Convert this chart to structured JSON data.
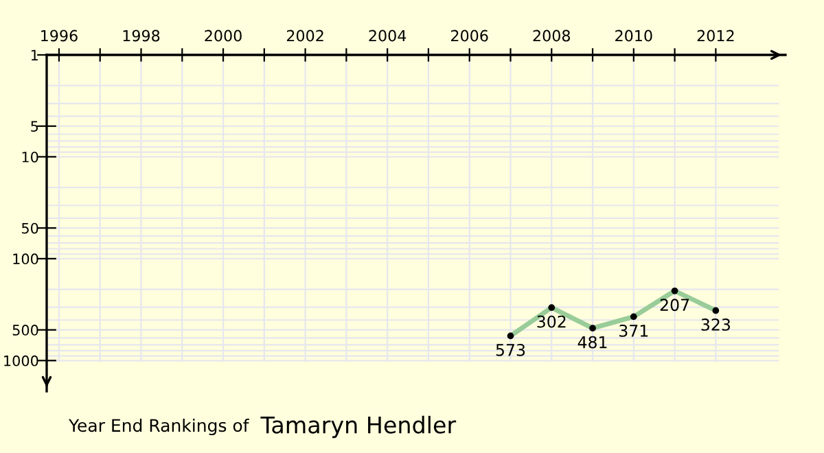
{
  "chart_data": {
    "type": "line",
    "title": "Year End Rankings of",
    "subtitle": "Tamaryn Hendler",
    "x": [
      2007,
      2008,
      2009,
      2010,
      2011,
      2012
    ],
    "series": [
      {
        "color": "#99cc99",
        "values": [
          573,
          302,
          481,
          371,
          207,
          323
        ]
      }
    ],
    "data_labels": true,
    "marker": "circle",
    "log": "y",
    "grid": true,
    "xlim": [
      1995.7,
      2013.7
    ],
    "ylim": [
      2000,
      1
    ],
    "xticks": [
      1996,
      {
        "value": 1997,
        "label": null
      },
      1998,
      {
        "value": 1999,
        "label": null
      },
      2000,
      {
        "value": 2001,
        "label": null
      },
      2002,
      {
        "value": 2003,
        "label": null
      },
      2004,
      {
        "value": 2005,
        "label": null
      },
      2006,
      {
        "value": 2007,
        "label": null
      },
      2008,
      {
        "value": 2009,
        "label": null
      },
      2010,
      {
        "value": 2011,
        "label": null
      },
      2012
    ],
    "yticks": [
      1,
      {
        "value": 2,
        "label": null
      },
      {
        "value": 3,
        "label": null
      },
      {
        "value": 4,
        "label": null
      },
      5,
      {
        "value": 6,
        "label": null
      },
      {
        "value": 7,
        "label": null
      },
      {
        "value": 8,
        "label": null
      },
      {
        "value": 9,
        "label": null
      },
      10,
      {
        "value": 20,
        "label": null
      },
      {
        "value": 30,
        "label": null
      },
      {
        "value": 40,
        "label": null
      },
      50,
      {
        "value": 60,
        "label": null
      },
      {
        "value": 70,
        "label": null
      },
      {
        "value": 80,
        "label": null
      },
      {
        "value": 90,
        "label": null
      },
      100,
      {
        "value": 200,
        "label": null
      },
      {
        "value": 300,
        "label": null
      },
      {
        "value": 400,
        "label": null
      },
      500,
      {
        "value": 600,
        "label": null
      },
      {
        "value": 700,
        "label": null
      },
      {
        "value": 800,
        "label": null
      },
      {
        "value": 900,
        "label": null
      },
      1000
    ]
  }
}
